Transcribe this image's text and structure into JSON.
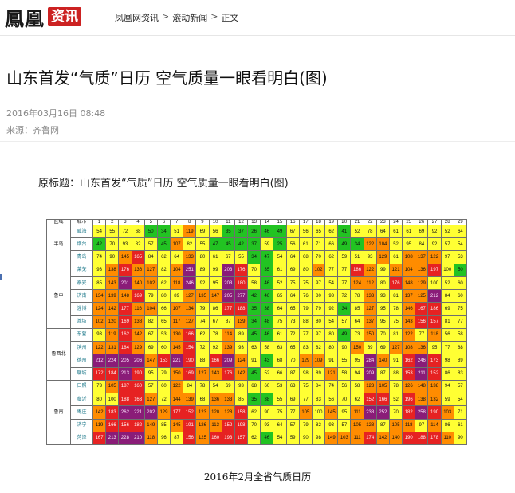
{
  "site": {
    "logo_text": "鳳凰",
    "logo_badge": "资讯"
  },
  "breadcrumb": {
    "items": [
      "凤凰网资讯",
      "滚动新闻",
      "正文"
    ],
    "separator": ">"
  },
  "article": {
    "title": "山东首发“气质”日历 空气质量一眼看明白(图)",
    "date": "2016年03月16日 08:48",
    "source": "来源：齐鲁网",
    "lead": "原标题：山东首发“气质”日历 空气质量一眼看明白(图)"
  },
  "figure": {
    "caption": "2016年2月全省气质日历",
    "header": {
      "region": "区域",
      "city": "城市",
      "days": [
        "1",
        "2",
        "3",
        "4",
        "5",
        "6",
        "7",
        "8",
        "9",
        "10",
        "11",
        "12",
        "13",
        "14",
        "15",
        "16",
        "17",
        "18",
        "19",
        "20",
        "21",
        "22",
        "23",
        "24",
        "25",
        "26",
        "27",
        "28",
        "29"
      ]
    },
    "colors": {
      "green": "#22c322",
      "yellow": "#ffff33",
      "orange": "#ff8c00",
      "red": "#e62222",
      "purple": "#8a1c78",
      "maroon": "#7a1028"
    },
    "groups": [
      {
        "region": "半岛",
        "rows": [
          {
            "city": "威海",
            "values": [
              "54",
              "55",
              "72",
              "68",
              "50",
              "34",
              "51",
              "119",
              "69",
              "56",
              "35",
              "37",
              "26",
              "46",
              "49",
              "67",
              "56",
              "65",
              "62",
              "41",
              "52",
              "78",
              "64",
              "61",
              "61",
              "69",
              "92",
              "52",
              "64"
            ]
          },
          {
            "city": "烟台",
            "values": [
              "42",
              "70",
              "93",
              "82",
              "57",
              "45",
              "107",
              "82",
              "55",
              "47",
              "45",
              "42",
              "37",
              "59",
              "25",
              "56",
              "61",
              "71",
              "66",
              "49",
              "34",
              "122",
              "104",
              "52",
              "95",
              "84",
              "92",
              "57",
              "54"
            ]
          },
          {
            "city": "青岛",
            "values": [
              "74",
              "90",
              "145",
              "165",
              "84",
              "62",
              "64",
              "133",
              "80",
              "61",
              "67",
              "55",
              "34",
              "47",
              "54",
              "64",
              "68",
              "70",
              "62",
              "59",
              "51",
              "93",
              "129",
              "61",
              "108",
              "137",
              "122",
              "97",
              "53"
            ]
          }
        ]
      },
      {
        "region": "鲁中",
        "rows": [
          {
            "city": "莱芜",
            "values": [
              "93",
              "138",
              "176",
              "136",
              "127",
              "82",
              "104",
              "251",
              "89",
              "99",
              "203",
              "176",
              "70",
              "35",
              "61",
              "69",
              "80",
              "102",
              "77",
              "77",
              "186",
              "122",
              "99",
              "121",
              "104",
              "136",
              "197",
              "100",
              "50"
            ]
          },
          {
            "city": "泰安",
            "values": [
              "85",
              "143",
              "201",
              "140",
              "102",
              "62",
              "118",
              "246",
              "92",
              "95",
              "203",
              "180",
              "58",
              "46",
              "52",
              "75",
              "75",
              "97",
              "54",
              "77",
              "124",
              "112",
              "80",
              "176",
              "148",
              "129",
              "100",
              "52",
              "60"
            ]
          },
          {
            "city": "济南",
            "values": [
              "134",
              "139",
              "148",
              "169",
              "79",
              "80",
              "89",
              "127",
              "135",
              "147",
              "205",
              "277",
              "42",
              "46",
              "65",
              "64",
              "76",
              "80",
              "93",
              "72",
              "78",
              "133",
              "93",
              "81",
              "137",
              "125",
              "212",
              "84",
              "60"
            ]
          },
          {
            "city": "淄博",
            "values": [
              "124",
              "142",
              "177",
              "116",
              "104",
              "66",
              "107",
              "134",
              "79",
              "86",
              "177",
              "188",
              "35",
              "38",
              "64",
              "65",
              "79",
              "79",
              "92",
              "34",
              "85",
              "127",
              "95",
              "78",
              "146",
              "167",
              "186",
              "69",
              "75"
            ]
          },
          {
            "city": "潍坊",
            "values": [
              "102",
              "120",
              "169",
              "138",
              "82",
              "65",
              "117",
              "127",
              "74",
              "67",
              "87",
              "139",
              "34",
              "48",
              "75",
              "73",
              "88",
              "80",
              "54",
              "57",
              "64",
              "137",
              "95",
              "75",
              "143",
              "156",
              "157",
              "81",
              "77"
            ]
          }
        ]
      },
      {
        "region": "鲁西北",
        "rows": [
          {
            "city": "东营",
            "values": [
              "93",
              "119",
              "162",
              "142",
              "67",
              "53",
              "130",
              "166",
              "62",
              "78",
              "114",
              "89",
              "45",
              "46",
              "61",
              "72",
              "77",
              "97",
              "80",
              "49",
              "73",
              "150",
              "70",
              "81",
              "122",
              "77",
              "118",
              "56",
              "58"
            ]
          },
          {
            "city": "滨州",
            "values": [
              "122",
              "131",
              "184",
              "129",
              "69",
              "60",
              "145",
              "154",
              "72",
              "92",
              "139",
              "93",
              "63",
              "58",
              "63",
              "65",
              "83",
              "82",
              "80",
              "90",
              "150",
              "69",
              "69",
              "127",
              "108",
              "136",
              "95",
              "77",
              "88"
            ]
          },
          {
            "city": "德州",
            "values": [
              "212",
              "224",
              "205",
              "206",
              "147",
              "153",
              "221",
              "190",
              "88",
              "166",
              "209",
              "124",
              "91",
              "43",
              "68",
              "70",
              "129",
              "109",
              "91",
              "55",
              "95",
              "284",
              "140",
              "91",
              "162",
              "246",
              "173",
              "98",
              "89"
            ]
          },
          {
            "city": "聊城",
            "values": [
              "172",
              "184",
              "213",
              "190",
              "95",
              "79",
              "150",
              "169",
              "127",
              "143",
              "176",
              "142",
              "45",
              "52",
              "66",
              "87",
              "98",
              "89",
              "121",
              "58",
              "94",
              "209",
              "87",
              "88",
              "153",
              "211",
              "152",
              "86",
              "83"
            ]
          }
        ]
      },
      {
        "region": "鲁南",
        "rows": [
          {
            "city": "日照",
            "values": [
              "73",
              "105",
              "187",
              "160",
              "57",
              "60",
              "122",
              "84",
              "78",
              "54",
              "69",
              "93",
              "68",
              "60",
              "53",
              "63",
              "75",
              "84",
              "74",
              "56",
              "58",
              "123",
              "105",
              "78",
              "126",
              "148",
              "138",
              "94",
              "57"
            ]
          },
          {
            "city": "临沂",
            "values": [
              "80",
              "100",
              "188",
              "163",
              "127",
              "72",
              "144",
              "139",
              "68",
              "136",
              "133",
              "85",
              "35",
              "38",
              "55",
              "69",
              "77",
              "83",
              "56",
              "70",
              "62",
              "152",
              "166",
              "52",
              "196",
              "138",
              "132",
              "59",
              "54"
            ]
          },
          {
            "city": "枣庄",
            "values": [
              "142",
              "183",
              "262",
              "221",
              "202",
              "129",
              "177",
              "152",
              "123",
              "120",
              "128",
              "158",
              "62",
              "90",
              "75",
              "77",
              "105",
              "100",
              "145",
              "95",
              "111",
              "238",
              "252",
              "70",
              "182",
              "258",
              "190",
              "103",
              "71"
            ]
          },
          {
            "city": "济宁",
            "values": [
              "119",
              "166",
              "156",
              "182",
              "149",
              "85",
              "145",
              "191",
              "126",
              "113",
              "152",
              "198",
              "70",
              "93",
              "64",
              "57",
              "79",
              "82",
              "93",
              "57",
              "105",
              "128",
              "87",
              "105",
              "118",
              "97",
              "114",
              "86",
              "61"
            ]
          },
          {
            "city": "菏泽",
            "values": [
              "167",
              "213",
              "228",
              "210",
              "118",
              "96",
              "87",
              "156",
              "125",
              "160",
              "193",
              "157",
              "62",
              "46",
              "54",
              "59",
              "90",
              "98",
              "149",
              "103",
              "111",
              "174",
              "142",
              "140",
              "190",
              "188",
              "178",
              "110",
              "90"
            ]
          }
        ]
      }
    ]
  }
}
